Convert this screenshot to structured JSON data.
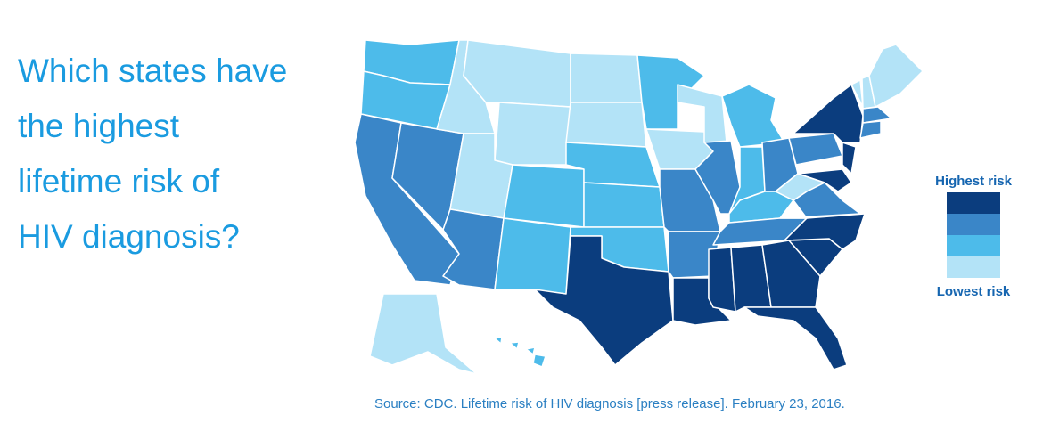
{
  "header": {
    "title_lines": [
      "Which states have",
      "the highest",
      "lifetime risk of",
      "HIV diagnosis?"
    ]
  },
  "legend": {
    "high_label": "Highest risk",
    "low_label": "Lowest risk",
    "colors": [
      "#b3e3f7",
      "#4dbbea",
      "#3a86c8",
      "#0b3d7e"
    ]
  },
  "source": "Source: CDC. Lifetime risk of HIV diagnosis [press release]. February 23, 2016."
}
